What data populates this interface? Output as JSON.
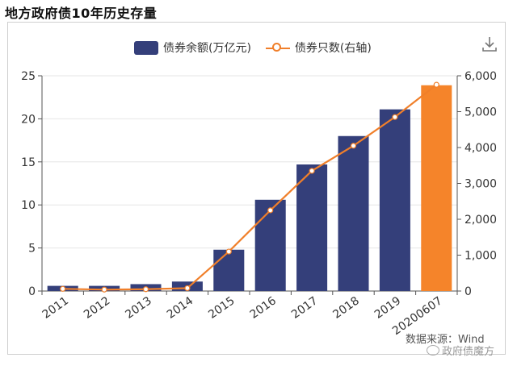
{
  "title": "地方政府债10年历史存量",
  "legend": {
    "bar_label": "债券余额(万亿元)",
    "line_label": "债券只数(右轴)"
  },
  "source": "数据来源：Wind",
  "watermark": "政府债魔方",
  "icons": {
    "download": "download-icon"
  },
  "colors": {
    "bar": "#343f7a",
    "bar_highlight": "#f5842a",
    "line": "#f07f2a"
  },
  "chart_data": {
    "type": "bar",
    "categories": [
      "2011",
      "2012",
      "2013",
      "2014",
      "2015",
      "2016",
      "2017",
      "2018",
      "2019",
      "20200607"
    ],
    "series": [
      {
        "name": "债券余额(万亿元)",
        "type": "bar",
        "axis": "left",
        "values": [
          0.6,
          0.6,
          0.8,
          1.1,
          4.8,
          10.6,
          14.7,
          18.0,
          21.1,
          23.9
        ]
      },
      {
        "name": "债券只数(右轴)",
        "type": "line",
        "axis": "right",
        "values": [
          60,
          40,
          50,
          80,
          1100,
          2250,
          3350,
          4050,
          4850,
          5750
        ]
      }
    ],
    "y_left": {
      "min": 0,
      "max": 25,
      "ticks": [
        0,
        5,
        10,
        15,
        20,
        25
      ]
    },
    "y_right": {
      "min": 0,
      "max": 6000,
      "ticks": [
        "0",
        "1,000",
        "2,000",
        "3,000",
        "4,000",
        "5,000",
        "6,000"
      ]
    },
    "highlight_index": 9,
    "grid": true
  }
}
